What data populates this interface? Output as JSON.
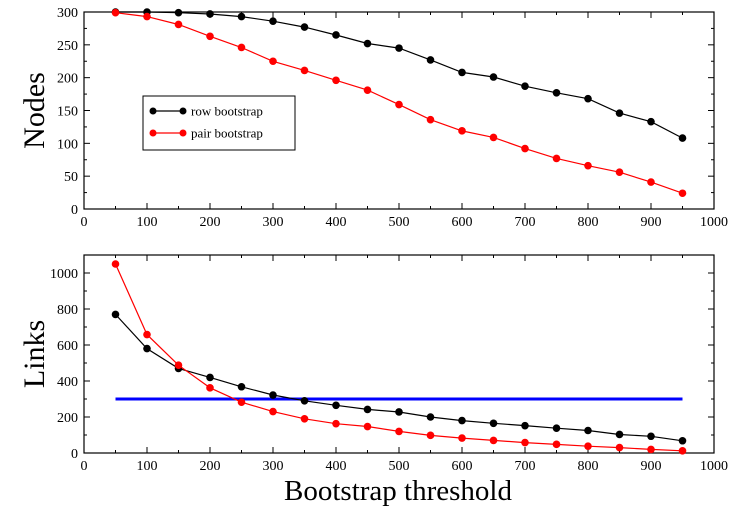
{
  "figure": {
    "xlabel": "Bootstrap threshold"
  },
  "chart_data": [
    {
      "type": "line",
      "ylabel": "Nodes",
      "xlim": [
        0,
        1000
      ],
      "ylim": [
        0,
        300
      ],
      "x_ticks": [
        0,
        100,
        200,
        300,
        400,
        500,
        600,
        700,
        800,
        900,
        1000
      ],
      "y_ticks": [
        0,
        50,
        100,
        150,
        200,
        250,
        300
      ],
      "grid": false,
      "legend": "upper-left-inside",
      "x": [
        50,
        100,
        150,
        200,
        250,
        300,
        350,
        400,
        450,
        500,
        550,
        600,
        650,
        700,
        750,
        800,
        850,
        900,
        950
      ],
      "series": [
        {
          "name": "row bootstrap",
          "color": "#000000",
          "values": [
            300,
            300,
            299,
            297,
            293,
            286,
            277,
            265,
            252,
            245,
            227,
            208,
            201,
            187,
            177,
            168,
            146,
            133,
            108
          ]
        },
        {
          "name": "pair bootstrap",
          "color": "#ff0000",
          "values": [
            299,
            293,
            281,
            263,
            246,
            225,
            211,
            196,
            181,
            159,
            136,
            119,
            109,
            92,
            77,
            66,
            56,
            41,
            24
          ]
        }
      ]
    },
    {
      "type": "line",
      "ylabel": "Links",
      "xlim": [
        0,
        1000
      ],
      "ylim": [
        0,
        1100
      ],
      "x_ticks": [
        0,
        100,
        200,
        300,
        400,
        500,
        600,
        700,
        800,
        900,
        1000
      ],
      "y_ticks": [
        0,
        200,
        400,
        600,
        800,
        1000
      ],
      "grid": false,
      "x": [
        50,
        100,
        150,
        200,
        250,
        300,
        350,
        400,
        450,
        500,
        550,
        600,
        650,
        700,
        750,
        800,
        850,
        900,
        950
      ],
      "series": [
        {
          "color": "#000000",
          "values": [
            770,
            580,
            470,
            420,
            368,
            322,
            290,
            265,
            242,
            228,
            200,
            180,
            165,
            152,
            138,
            125,
            103,
            93,
            68
          ]
        },
        {
          "color": "#ff0000",
          "values": [
            1050,
            658,
            488,
            362,
            282,
            230,
            190,
            163,
            147,
            120,
            98,
            83,
            70,
            58,
            48,
            38,
            30,
            20,
            12
          ]
        }
      ],
      "reference_line": {
        "color": "#0000ff",
        "y": 300,
        "x": [
          50,
          950
        ]
      }
    }
  ]
}
